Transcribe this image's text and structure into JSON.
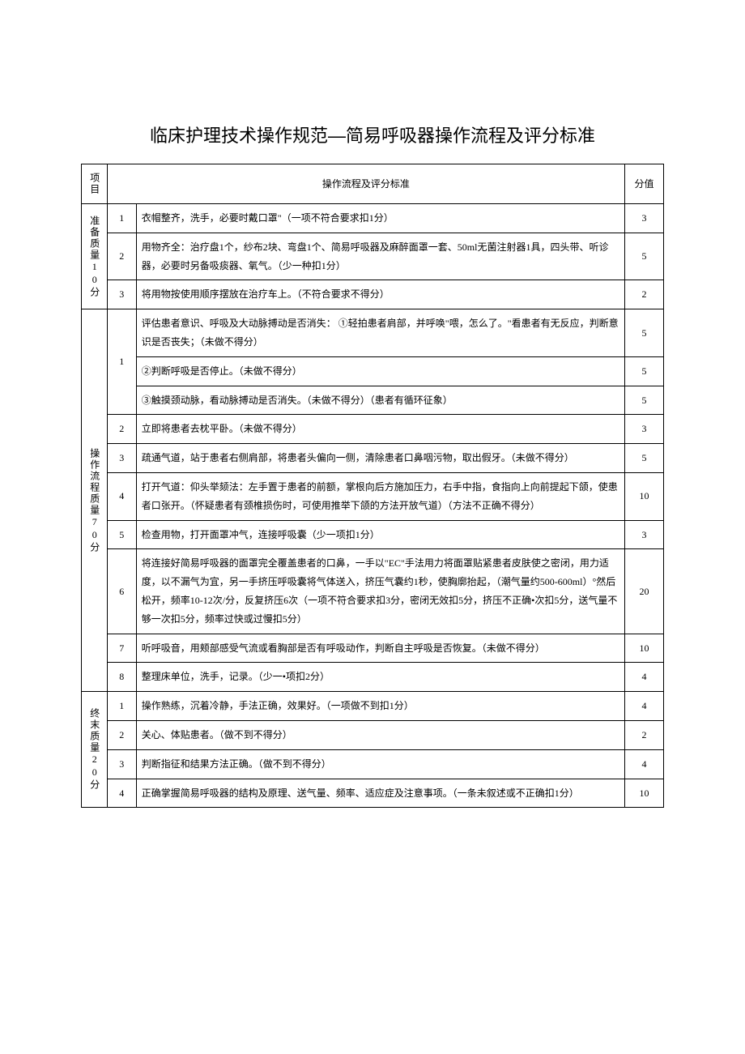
{
  "title": "临床护理技术操作规范—简易呼吸器操作流程及评分标准",
  "headers": {
    "col1": "项目",
    "col2": "操作流程及评分标准",
    "col3": "分值"
  },
  "sections": [
    {
      "label": "准备质量10分",
      "rows": [
        {
          "num": "1",
          "desc": "衣帽整齐，洗手，必要时戴口罩\"（一项不符合要求扣1分）",
          "score": "3"
        },
        {
          "num": "2",
          "desc": "用物齐全：治疗盘1个，纱布2块、弯盘1个、简易呼吸器及麻醉面罩一套、50ml无菌注射器1具，四头带、听诊器，必要时另备吸痰器、氧气。（少一种扣1分）",
          "score": "5"
        },
        {
          "num": "3",
          "desc": "将用物按使用顺序摆放在治疗车上。（不符合要求不得分）",
          "score": "2"
        }
      ]
    },
    {
      "label": "操作流程质量70分",
      "rows": [
        {
          "num": "1",
          "sub": [
            {
              "desc": "评估患者意识、呼吸及大动脉搏动是否消失：\n①轻拍患者肩部，并呼唤\"喂，怎么了。\"看患者有无反应，判断意识是否丧失；（未做不得分）",
              "score": "5"
            },
            {
              "desc": "②判断呼吸是否停止。（未做不得分）",
              "score": "5"
            },
            {
              "desc": "③触摸颈动脉，看动脉搏动是否消失。（未做不得分）（患者有循环征象）",
              "score": "5"
            }
          ]
        },
        {
          "num": "2",
          "desc": "立即将患者去枕平卧。（未做不得分）",
          "score": "3"
        },
        {
          "num": "3",
          "desc": "疏通气道，站于患者右侧肩部，将患者头偏向一侧，清除患者口鼻咽污物，取出假牙。（未做不得分）",
          "score": "5"
        },
        {
          "num": "4",
          "desc": "打开气道：仰头举颏法：左手置于患者的前额，掌根向后方施加压力，右手中指，食指向上向前提起下颌，使患者口张开。（怀疑患者有颈椎损伤时，可使用推举下颌的方法开放气道）（方法不正确不得分）",
          "score": "10"
        },
        {
          "num": "5",
          "desc": "检查用物，打开面罩冲气，连接呼吸囊（少一项扣1分）",
          "score": "3"
        },
        {
          "num": "6",
          "desc": "将连接好简易呼吸器的面罩完全覆盖患者的口鼻，一手以\"EC\"手法用力将面罩贴紧患者皮肤使之密闭，用力适度，以不漏气为宜，另一手挤压呼吸囊将气体送入，挤压气囊约1秒，使胸廓抬起，（潮气量约500-600ml）°然后松开，频率10-12次/分，反复挤压6次（一项不符合要求扣3分，密闭无效扣5分，挤压不正确•次扣5分，送气量不够一次扣5分，频率过快或过慢扣5分）",
          "score": "20"
        },
        {
          "num": "7",
          "desc": "听呼吸音，用颊部感受气流或看胸部是否有呼吸动作，判断自主呼吸是否恢复。（未做不得分）",
          "score": "10"
        },
        {
          "num": "8",
          "desc": "整理床单位，洗手，记录。（少一•项扣2分）",
          "score": "4"
        }
      ]
    },
    {
      "label": "终末质量20分",
      "rows": [
        {
          "num": "1",
          "desc": "操作熟练，沉着冷静，手法正确，效果好。（一项做不到扣1分）",
          "score": "4"
        },
        {
          "num": "2",
          "desc": "关心、体贴患者。（做不到不得分）",
          "score": "2"
        },
        {
          "num": "3",
          "desc": "判断指征和结果方法正确。（做不到不得分）",
          "score": "4"
        },
        {
          "num": "4",
          "desc": "正确掌握简易呼吸器的结构及原理、送气量、频率、适应症及注意事项。（一条未叙述或不正确扣1分）",
          "score": "10"
        }
      ]
    }
  ]
}
